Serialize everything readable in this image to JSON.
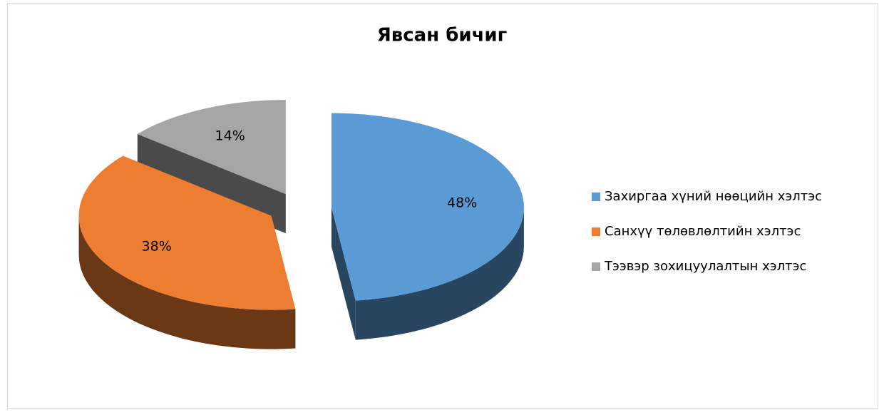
{
  "chart_data": {
    "type": "pie",
    "title": "Явсан бичиг",
    "categories": [
      "Захиргаа хүний нөөцийн хэлтэс",
      "Санхүү төлөвлөлтийн хэлтэс",
      "Тээвэр зохицуулалтын хэлтэс"
    ],
    "values": [
      48,
      38,
      14
    ],
    "value_labels": [
      "48%",
      "38%",
      "14%"
    ],
    "colors": [
      "#5b9bd5",
      "#ed7d31",
      "#a5a5a5"
    ],
    "legend": "right"
  }
}
